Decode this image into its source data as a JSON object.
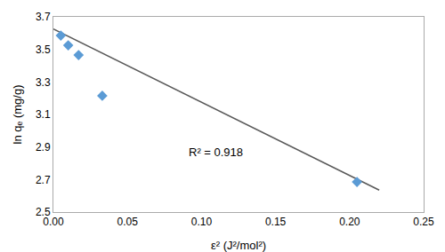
{
  "chart_data": {
    "type": "scatter",
    "xlabel": "ε² (J²/mol²)",
    "ylabel": "ln qₑ (mg/g)",
    "series": [
      {
        "type": "line",
        "x": [
          0.0,
          0.22
        ],
        "values": [
          3.625,
          2.635
        ],
        "color": "#595959",
        "line_style": "solid"
      },
      {
        "type": "scatter",
        "x": [
          0.005,
          0.01,
          0.017,
          0.033,
          0.205
        ],
        "values": [
          3.585,
          3.525,
          3.465,
          3.215,
          2.685
        ],
        "color": "#5B9BD5",
        "marker": "diamond"
      }
    ],
    "annotations": [
      {
        "text": "R² = 0.918",
        "x": 0.09,
        "y": 2.87
      }
    ],
    "xlim": [
      0,
      0.25
    ],
    "ylim": [
      2.5,
      3.7
    ],
    "xticks": [
      {
        "value": 0,
        "label": "0.00"
      },
      0.05,
      {
        "value": 0.1,
        "label": "0.10"
      },
      0.15,
      {
        "value": 0.2,
        "label": "0.20"
      },
      0.25
    ],
    "yticks": [
      2.5,
      2.7,
      2.9,
      3.1,
      3.3,
      3.5,
      3.7
    ],
    "grid": false
  }
}
